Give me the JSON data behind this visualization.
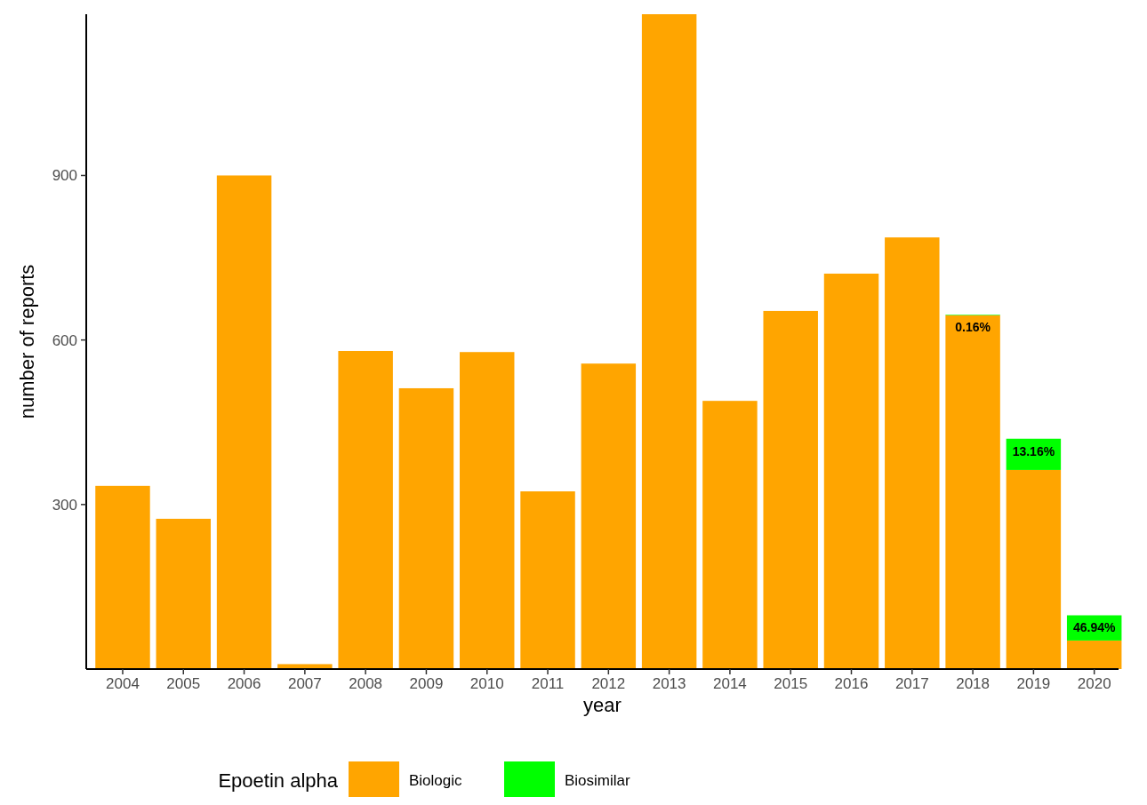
{
  "chart_data": {
    "type": "bar",
    "stacked": true,
    "xlabel": "year",
    "ylabel": "number of reports",
    "legend_title": "Epoetin alpha",
    "legend": "bottom",
    "categories": [
      "2004",
      "2005",
      "2006",
      "2007",
      "2008",
      "2009",
      "2010",
      "2011",
      "2012",
      "2013",
      "2014",
      "2015",
      "2016",
      "2017",
      "2018",
      "2019",
      "2020"
    ],
    "series": [
      {
        "name": "Biologic",
        "color": "#ffa500",
        "values": [
          334,
          274,
          900,
          9,
          580,
          512,
          578,
          324,
          557,
          1194,
          489,
          653,
          721,
          787,
          645,
          363,
          52
        ]
      },
      {
        "name": "Biosimilar",
        "color": "#00ff00",
        "values": [
          0,
          0,
          0,
          0,
          0,
          0,
          0,
          0,
          0,
          0,
          0,
          0,
          0,
          0,
          1,
          57,
          46
        ]
      }
    ],
    "annotations": [
      {
        "text": "0.16%",
        "x": "2018",
        "y": 646
      },
      {
        "text": "13.16%",
        "x": "2019",
        "y": 420
      },
      {
        "text": "46.94%",
        "x": "2020",
        "y": 98
      }
    ],
    "ylim": [
      0,
      1194
    ],
    "yticks": [
      300,
      600,
      900
    ]
  }
}
